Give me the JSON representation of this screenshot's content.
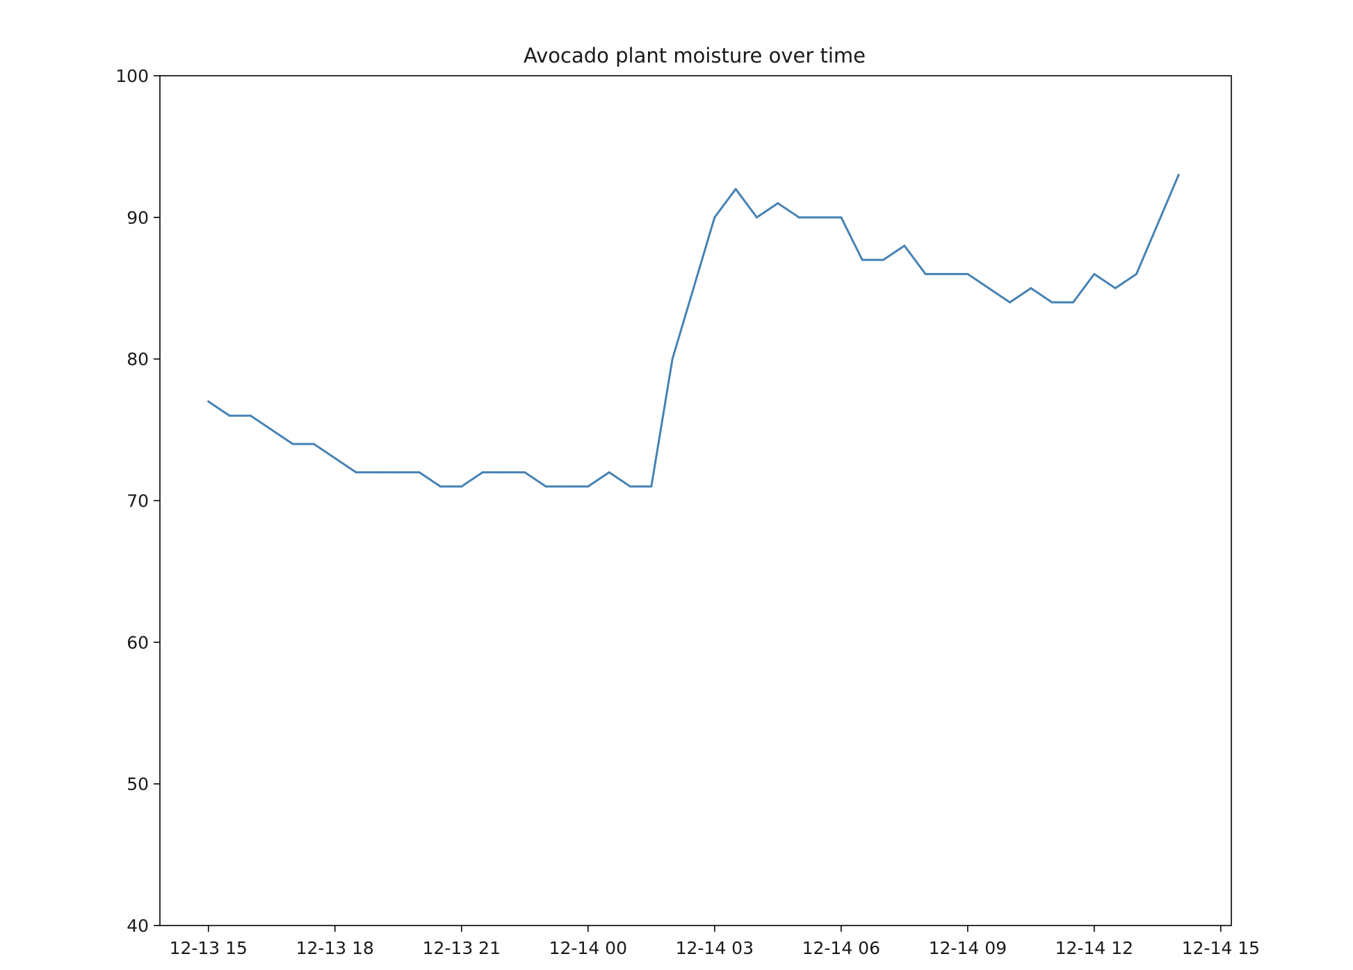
{
  "chart_data": {
    "type": "line",
    "title": "Avocado plant moisture over time",
    "xlabel": "",
    "ylabel": "",
    "x_ticks": [
      "12-13 15",
      "12-13 18",
      "12-13 21",
      "12-14 00",
      "12-14 03",
      "12-14 06",
      "12-14 09",
      "12-14 12",
      "12-14 15"
    ],
    "x_tick_times": [
      "2022-12-13T15:00",
      "2022-12-13T18:00",
      "2022-12-13T21:00",
      "2022-12-14T00:00",
      "2022-12-14T03:00",
      "2022-12-14T06:00",
      "2022-12-14T09:00",
      "2022-12-14T12:00",
      "2022-12-14T15:00"
    ],
    "xlim": [
      "2022-12-13T13:51",
      "2022-12-14T15:15"
    ],
    "y_ticks": [
      40,
      50,
      60,
      70,
      80,
      90,
      100
    ],
    "ylim": [
      40,
      100
    ],
    "grid": false,
    "series": [
      {
        "color": "#4682b4",
        "x": [
          "2022-12-13T15:00",
          "2022-12-13T15:30",
          "2022-12-13T16:00",
          "2022-12-13T16:30",
          "2022-12-13T17:00",
          "2022-12-13T17:30",
          "2022-12-13T18:00",
          "2022-12-13T18:30",
          "2022-12-13T19:00",
          "2022-12-13T19:30",
          "2022-12-13T20:00",
          "2022-12-13T20:30",
          "2022-12-13T21:00",
          "2022-12-13T21:30",
          "2022-12-13T22:00",
          "2022-12-13T22:30",
          "2022-12-13T23:00",
          "2022-12-13T23:30",
          "2022-12-14T00:00",
          "2022-12-14T00:30",
          "2022-12-14T01:00",
          "2022-12-14T01:30",
          "2022-12-14T02:00",
          "2022-12-14T02:30",
          "2022-12-14T03:00",
          "2022-12-14T03:30",
          "2022-12-14T04:00",
          "2022-12-14T04:30",
          "2022-12-14T05:00",
          "2022-12-14T05:30",
          "2022-12-14T06:00",
          "2022-12-14T06:30",
          "2022-12-14T07:00",
          "2022-12-14T07:30",
          "2022-12-14T08:00",
          "2022-12-14T08:30",
          "2022-12-14T09:00",
          "2022-12-14T09:30",
          "2022-12-14T10:00",
          "2022-12-14T10:30",
          "2022-12-14T11:00",
          "2022-12-14T11:30",
          "2022-12-14T12:00",
          "2022-12-14T12:30",
          "2022-12-14T13:00",
          "2022-12-14T13:30",
          "2022-12-14T14:00"
        ],
        "y": [
          77,
          76,
          76,
          75,
          74,
          74,
          73,
          72,
          72,
          72,
          72,
          71,
          71,
          72,
          72,
          72,
          71,
          71,
          71,
          72,
          71,
          71,
          80,
          85,
          90,
          92,
          90,
          91,
          90,
          90,
          90,
          87,
          87,
          88,
          86,
          86,
          86,
          85,
          84,
          85,
          84,
          84,
          86,
          85,
          86,
          89.5,
          93
        ]
      }
    ]
  }
}
